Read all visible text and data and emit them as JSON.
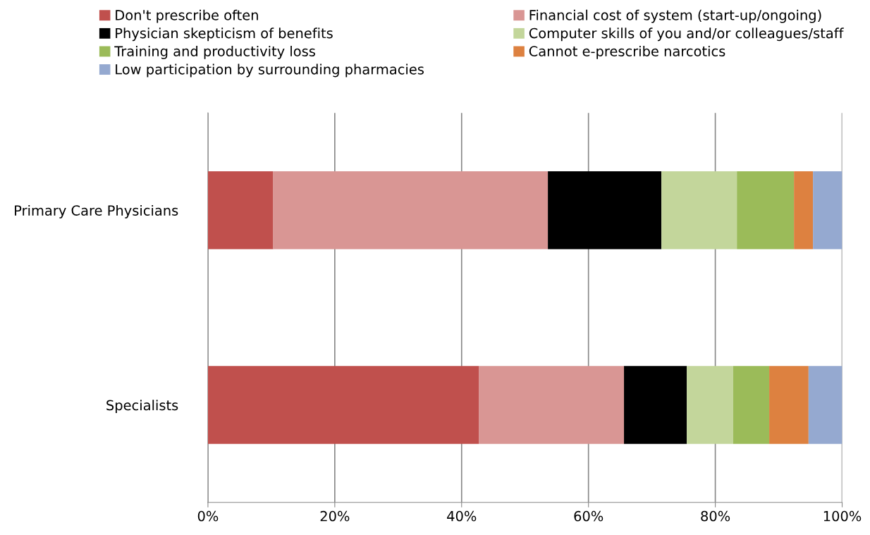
{
  "chart_data": {
    "type": "bar",
    "orientation": "horizontal",
    "stacked": true,
    "categories": [
      "Primary Care Physicians",
      "Specialists"
    ],
    "series": [
      {
        "name": "Don't prescribe often",
        "color": "#c0504d",
        "values": [
          10.3,
          42.7
        ]
      },
      {
        "name": "Financial cost of system (start-up/ongoing)",
        "color": "#d99694",
        "values": [
          43.3,
          22.9
        ]
      },
      {
        "name": "Physician skepticism of benefits",
        "color": "#000000",
        "values": [
          17.9,
          9.9
        ]
      },
      {
        "name": "Computer skills of you and/or colleagues/staff",
        "color": "#c3d69b",
        "values": [
          11.9,
          7.3
        ]
      },
      {
        "name": "Training and productivity loss",
        "color": "#9bbb59",
        "values": [
          9.0,
          5.7
        ]
      },
      {
        "name": "Cannot e-prescribe narcotics",
        "color": "#dd8140",
        "values": [
          3.0,
          6.2
        ]
      },
      {
        "name": "Low participation by surrounding pharmacies",
        "color": "#95a9d0",
        "values": [
          4.6,
          5.3
        ]
      }
    ],
    "xlim": [
      0,
      100
    ],
    "xticks": [
      {
        "value": 0,
        "label": "0%"
      },
      {
        "value": 20,
        "label": "20%"
      },
      {
        "value": 40,
        "label": "40%"
      },
      {
        "value": 60,
        "label": "60%"
      },
      {
        "value": 80,
        "label": "80%"
      },
      {
        "value": 100,
        "label": "100%"
      }
    ],
    "grid": "x",
    "legend": "top"
  }
}
